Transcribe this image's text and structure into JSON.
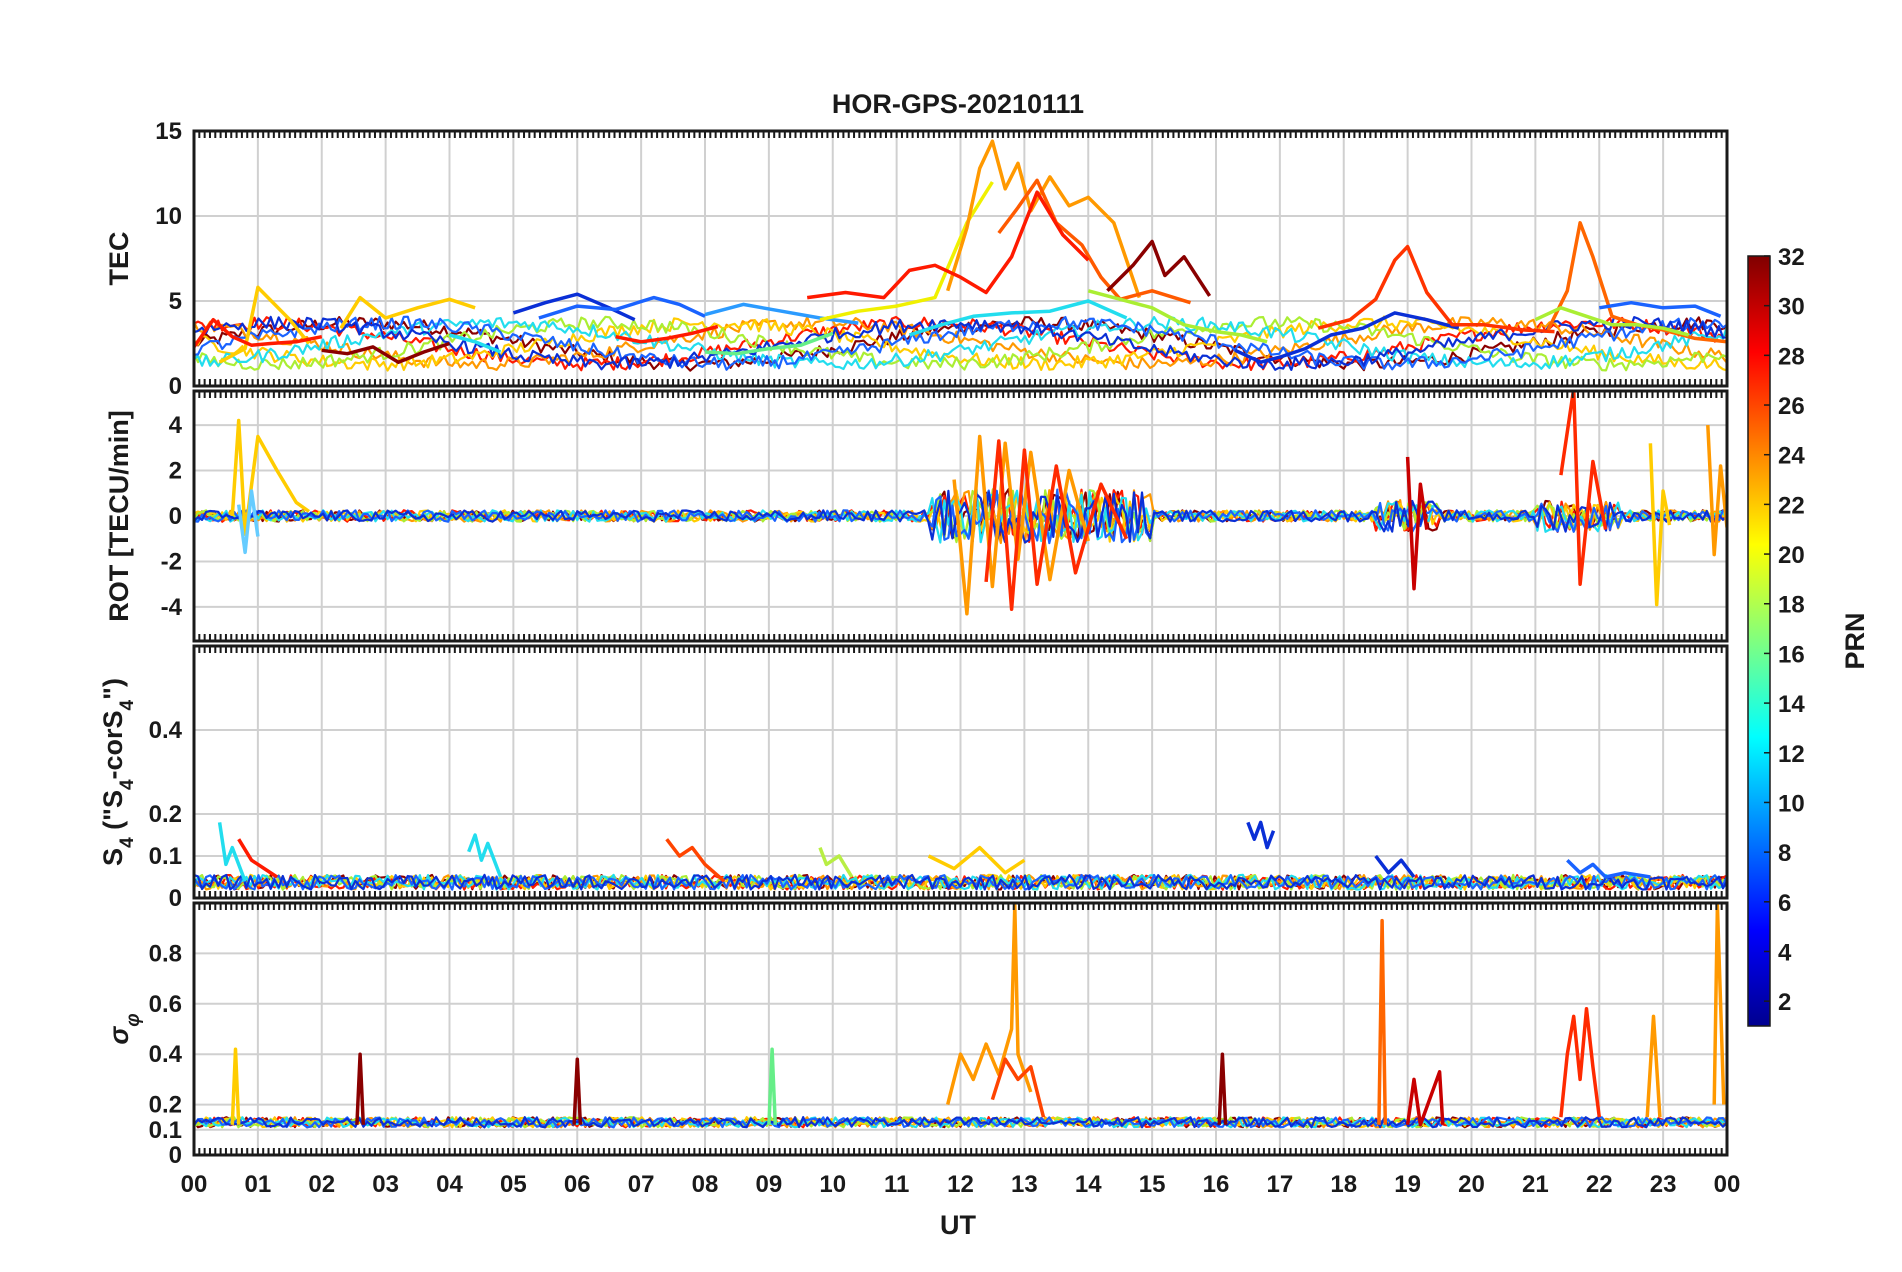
{
  "chart_data": {
    "type": "line",
    "title": "HOR-GPS-20210111",
    "xlabel": "UT",
    "x_ticks": [
      "00",
      "01",
      "02",
      "03",
      "04",
      "05",
      "06",
      "07",
      "08",
      "09",
      "10",
      "11",
      "12",
      "13",
      "14",
      "15",
      "16",
      "17",
      "18",
      "19",
      "20",
      "21",
      "22",
      "23",
      "00"
    ],
    "x_range_hours": [
      0,
      24
    ],
    "grid": true,
    "panels": [
      {
        "id": "tec",
        "ylabel": "TEC",
        "ylim": [
          0,
          15
        ],
        "yticks": [
          0,
          5,
          10,
          15
        ],
        "series": [
          {
            "color": "#0a2fd6",
            "x": [
              5.0,
              5.5,
              6.0,
              6.5,
              6.9
            ],
            "y": [
              4.3,
              4.9,
              5.4,
              4.6,
              3.9
            ]
          },
          {
            "color": "#1a63ff",
            "x": [
              5.4,
              6.0,
              6.6,
              7.2,
              7.6,
              8.0
            ],
            "y": [
              4.0,
              4.7,
              4.5,
              5.2,
              4.8,
              4.1
            ]
          },
          {
            "color": "#2b9bff",
            "x": [
              8.0,
              8.6,
              9.2,
              9.8,
              10.4
            ],
            "y": [
              4.2,
              4.8,
              4.4,
              4.0,
              3.7
            ]
          },
          {
            "color": "#ffcc00",
            "x": [
              0.4,
              0.8,
              1.0,
              1.5,
              1.8
            ],
            "y": [
              1.4,
              2.2,
              5.8,
              3.9,
              2.5
            ]
          },
          {
            "color": "#ffcc00",
            "x": [
              2.3,
              2.6,
              3.0,
              3.5,
              4.0,
              4.4
            ],
            "y": [
              3.4,
              5.2,
              4.0,
              4.6,
              5.1,
              4.6
            ]
          },
          {
            "color": "#f0f000",
            "x": [
              9.8,
              10.4,
              11.0,
              11.6,
              12.1,
              12.5
            ],
            "y": [
              3.9,
              4.4,
              4.7,
              5.2,
              9.6,
              12.0
            ]
          },
          {
            "color": "#ff9900",
            "x": [
              11.8,
              12.1,
              12.3,
              12.5,
              12.7,
              12.9,
              13.1,
              13.4,
              13.7,
              14.0,
              14.4,
              14.8
            ],
            "y": [
              5.6,
              9.3,
              12.8,
              14.4,
              11.6,
              13.1,
              10.3,
              12.3,
              10.6,
              11.1,
              9.6,
              5.2
            ]
          },
          {
            "color": "#ff5a00",
            "x": [
              12.6,
              12.9,
              13.2,
              13.5,
              13.9,
              14.2,
              14.5,
              15.0,
              15.6
            ],
            "y": [
              9.0,
              10.5,
              12.1,
              9.6,
              8.3,
              6.4,
              5.1,
              5.6,
              4.9
            ]
          },
          {
            "color": "#ff1a00",
            "x": [
              9.6,
              10.2,
              10.8,
              11.2,
              11.6,
              12.0,
              12.4,
              12.8,
              13.2,
              13.6,
              14.0
            ],
            "y": [
              5.2,
              5.5,
              5.2,
              6.8,
              7.1,
              6.4,
              5.5,
              7.6,
              11.4,
              8.9,
              7.4
            ]
          },
          {
            "color": "#8a0000",
            "x": [
              14.3,
              14.7,
              15.0,
              15.2,
              15.5,
              15.9
            ],
            "y": [
              5.6,
              7.1,
              8.5,
              6.5,
              7.6,
              5.3
            ]
          },
          {
            "color": "#aaee33",
            "x": [
              14.0,
              14.5,
              15.0,
              15.5,
              16.0,
              16.4,
              16.8
            ],
            "y": [
              5.6,
              5.1,
              4.6,
              3.6,
              3.2,
              3.0,
              2.6
            ]
          },
          {
            "color": "#66ee88",
            "x": [
              8.0,
              8.5,
              9.0,
              9.5,
              10.0
            ],
            "y": [
              2.0,
              1.9,
              2.2,
              2.4,
              3.1
            ]
          },
          {
            "color": "#22ddee",
            "x": [
              11.2,
              11.7,
              12.2,
              12.8,
              13.4,
              14.0,
              14.6
            ],
            "y": [
              3.0,
              3.6,
              4.1,
              4.3,
              4.4,
              5.0,
              4.0
            ]
          },
          {
            "color": "#0a2fd6",
            "x": [
              16.3,
              16.7,
              17.0,
              17.4,
              17.8,
              18.3,
              18.8,
              19.3,
              19.8
            ],
            "y": [
              2.1,
              1.4,
              1.7,
              2.2,
              3.0,
              3.4,
              4.3,
              3.9,
              3.4
            ]
          },
          {
            "color": "#ff3300",
            "x": [
              17.6,
              18.1,
              18.5,
              18.8,
              19.0,
              19.3,
              19.7,
              20.2,
              20.8,
              21.3
            ],
            "y": [
              3.4,
              3.9,
              5.1,
              7.4,
              8.2,
              5.5,
              3.6,
              3.6,
              3.3,
              3.2
            ]
          },
          {
            "color": "#ff6600",
            "x": [
              21.2,
              21.5,
              21.7,
              21.9,
              22.2,
              22.6,
              23.0,
              23.5,
              24.0
            ],
            "y": [
              3.3,
              5.6,
              9.6,
              7.6,
              4.1,
              3.6,
              3.3,
              2.8,
              2.6
            ]
          },
          {
            "color": "#aaee33",
            "x": [
              21.0,
              21.4,
              21.8,
              22.2,
              22.6,
              23.0,
              23.4
            ],
            "y": [
              3.9,
              4.6,
              4.1,
              3.6,
              3.6,
              3.4,
              3.0
            ]
          },
          {
            "color": "#1a63ff",
            "x": [
              22.0,
              22.5,
              23.0,
              23.5,
              23.9
            ],
            "y": [
              4.6,
              4.9,
              4.6,
              4.7,
              4.1
            ]
          },
          {
            "color": "#ff1a00",
            "x": [
              0.0,
              0.3,
              0.6,
              0.9,
              1.2,
              1.6,
              2.0
            ],
            "y": [
              2.3,
              3.9,
              2.9,
              2.4,
              2.5,
              2.6,
              2.9
            ]
          },
          {
            "color": "#8a0000",
            "x": [
              2.0,
              2.4,
              2.8,
              3.2,
              3.6,
              4.0
            ],
            "y": [
              2.1,
              1.9,
              2.3,
              1.4,
              2.0,
              2.5
            ]
          },
          {
            "color": "#ff1a00",
            "x": [
              6.6,
              7.0,
              7.4,
              7.8,
              8.2
            ],
            "y": [
              2.9,
              2.6,
              2.8,
              3.1,
              3.5
            ]
          },
          {
            "color": "#22ddee",
            "x": [
              4.0,
              4.4,
              4.8
            ],
            "y": [
              3.0,
              2.6,
              2.0
            ]
          }
        ]
      },
      {
        "id": "rot",
        "ylabel": "ROT [TECU/min]",
        "ylim": [
          -5.5,
          5.5
        ],
        "yticks": [
          -4,
          -2,
          0,
          2,
          4
        ],
        "series": [
          {
            "color": "#ffcc00",
            "x": [
              0.6,
              0.7,
              0.8,
              1.0,
              1.3,
              1.6,
              1.8
            ],
            "y": [
              0,
              4.2,
              -0.8,
              3.5,
              2.0,
              0.6,
              0.2
            ]
          },
          {
            "color": "#66ccff",
            "x": [
              0.7,
              0.8,
              0.9,
              1.0
            ],
            "y": [
              0.5,
              -1.6,
              1.1,
              -0.9
            ]
          },
          {
            "color": "#ff9900",
            "x": [
              11.9,
              12.1,
              12.3,
              12.5,
              12.7,
              12.9,
              13.1,
              13.4,
              13.7,
              14.0
            ],
            "y": [
              1.6,
              -4.3,
              3.5,
              -3.1,
              3.2,
              -1.9,
              2.8,
              -2.8,
              2.0,
              -1.1
            ]
          },
          {
            "color": "#ff2a00",
            "x": [
              12.4,
              12.6,
              12.8,
              13.0,
              13.2,
              13.5,
              13.8,
              14.2,
              14.6
            ],
            "y": [
              -2.9,
              3.3,
              -4.1,
              2.9,
              -3.0,
              2.2,
              -2.5,
              1.4,
              -1.0
            ]
          },
          {
            "color": "#c80000",
            "x": [
              19.0,
              19.1,
              19.2,
              19.3
            ],
            "y": [
              2.6,
              -3.2,
              1.4,
              -0.6
            ]
          },
          {
            "color": "#ff2a00",
            "x": [
              21.4,
              21.6,
              21.7,
              21.9,
              22.1
            ],
            "y": [
              1.8,
              5.6,
              -3.0,
              2.4,
              -0.6
            ]
          },
          {
            "color": "#ffcc00",
            "x": [
              22.8,
              22.9,
              23.0,
              23.1
            ],
            "y": [
              3.2,
              -3.9,
              1.1,
              -0.4
            ]
          },
          {
            "color": "#ff9900",
            "x": [
              23.7,
              23.8,
              23.9,
              24.0
            ],
            "y": [
              4.0,
              -1.7,
              2.2,
              -0.5
            ]
          }
        ]
      },
      {
        "id": "s4",
        "ylabel": "S4 (\"S4-corS4\")",
        "ylim": [
          0,
          0.6
        ],
        "yticks": [
          0,
          0.1,
          0.2,
          0.4
        ],
        "series": [
          {
            "color": "#22ddee",
            "x": [
              0.4,
              0.5,
              0.6,
              0.8
            ],
            "y": [
              0.18,
              0.08,
              0.12,
              0.04
            ]
          },
          {
            "color": "#ff1a00",
            "x": [
              0.7,
              0.9,
              1.1,
              1.3
            ],
            "y": [
              0.14,
              0.09,
              0.07,
              0.05
            ]
          },
          {
            "color": "#22ddee",
            "x": [
              4.3,
              4.4,
              4.5,
              4.6,
              4.8
            ],
            "y": [
              0.11,
              0.15,
              0.09,
              0.13,
              0.05
            ]
          },
          {
            "color": "#ff4400",
            "x": [
              7.4,
              7.6,
              7.8,
              8.0,
              8.3
            ],
            "y": [
              0.14,
              0.1,
              0.12,
              0.08,
              0.04
            ]
          },
          {
            "color": "#b8ee44",
            "x": [
              9.8,
              9.9,
              10.1,
              10.3
            ],
            "y": [
              0.12,
              0.08,
              0.1,
              0.05
            ]
          },
          {
            "color": "#0a2fd6",
            "x": [
              16.5,
              16.6,
              16.7,
              16.8,
              16.9
            ],
            "y": [
              0.18,
              0.14,
              0.18,
              0.12,
              0.16
            ]
          },
          {
            "color": "#0a2fd6",
            "x": [
              18.5,
              18.7,
              18.9,
              19.1
            ],
            "y": [
              0.1,
              0.06,
              0.09,
              0.05
            ]
          },
          {
            "color": "#1a63ff",
            "x": [
              21.5,
              21.7,
              21.9,
              22.1,
              22.4,
              22.8
            ],
            "y": [
              0.09,
              0.06,
              0.08,
              0.05,
              0.06,
              0.05
            ]
          },
          {
            "color": "#ffcc00",
            "x": [
              11.5,
              11.9,
              12.3,
              12.7,
              13.0
            ],
            "y": [
              0.1,
              0.07,
              0.12,
              0.06,
              0.09
            ]
          }
        ]
      },
      {
        "id": "sigma_phi",
        "ylabel": "σφ",
        "ylim": [
          0,
          1.0
        ],
        "yticks": [
          0,
          0.1,
          0.2,
          0.4,
          0.6,
          0.8
        ],
        "series": [
          {
            "color": "#ffcc00",
            "x": [
              0.6,
              0.65,
              0.7
            ],
            "y": [
              0.12,
              0.42,
              0.12
            ]
          },
          {
            "color": "#8a0000",
            "x": [
              2.55,
              2.6,
              2.65
            ],
            "y": [
              0.12,
              0.4,
              0.12
            ]
          },
          {
            "color": "#8a0000",
            "x": [
              5.95,
              6.0,
              6.05
            ],
            "y": [
              0.12,
              0.38,
              0.12
            ]
          },
          {
            "color": "#66ee88",
            "x": [
              9.0,
              9.05,
              9.1
            ],
            "y": [
              0.12,
              0.42,
              0.12
            ]
          },
          {
            "color": "#ff9900",
            "x": [
              11.8,
              12.0,
              12.2,
              12.4,
              12.6,
              12.8,
              12.85,
              12.9,
              13.1
            ],
            "y": [
              0.2,
              0.4,
              0.3,
              0.44,
              0.32,
              0.5,
              0.99,
              0.4,
              0.25
            ]
          },
          {
            "color": "#ff4400",
            "x": [
              12.5,
              12.7,
              12.9,
              13.1,
              13.3
            ],
            "y": [
              0.22,
              0.38,
              0.3,
              0.35,
              0.15
            ]
          },
          {
            "color": "#8a0000",
            "x": [
              16.05,
              16.1,
              16.15
            ],
            "y": [
              0.12,
              0.4,
              0.12
            ]
          },
          {
            "color": "#ff6600",
            "x": [
              18.55,
              18.6,
              18.65
            ],
            "y": [
              0.12,
              0.93,
              0.12
            ]
          },
          {
            "color": "#c80000",
            "x": [
              19.0,
              19.1,
              19.2,
              19.5,
              19.55
            ],
            "y": [
              0.12,
              0.3,
              0.12,
              0.33,
              0.12
            ]
          },
          {
            "color": "#ff2a00",
            "x": [
              21.4,
              21.5,
              21.6,
              21.7,
              21.8,
              21.9,
              22.0
            ],
            "y": [
              0.15,
              0.4,
              0.55,
              0.3,
              0.58,
              0.35,
              0.15
            ]
          },
          {
            "color": "#ff9900",
            "x": [
              22.75,
              22.85,
              22.95
            ],
            "y": [
              0.15,
              0.55,
              0.15
            ]
          },
          {
            "color": "#ff9900",
            "x": [
              23.8,
              23.85,
              23.9,
              23.95
            ],
            "y": [
              0.2,
              0.99,
              0.6,
              0.2
            ]
          }
        ]
      }
    ],
    "colorbar": {
      "label": "PRN",
      "ticks": [
        2,
        4,
        6,
        8,
        10,
        12,
        14,
        16,
        18,
        20,
        22,
        24,
        26,
        28,
        30,
        32
      ],
      "range": [
        1,
        32
      ],
      "colormap": "jet"
    }
  }
}
